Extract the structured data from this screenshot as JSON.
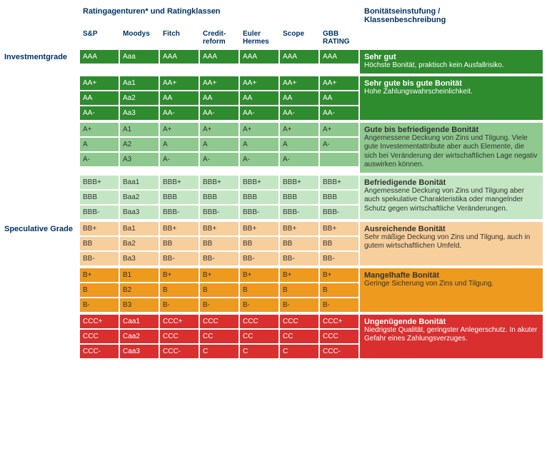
{
  "headers": {
    "agencies_title": "Ratingagenturen* und Ratingklassen",
    "desc_title": "Bonitätseinstufung / Klassenbeschreibung",
    "agency_cols": [
      "S&P",
      "Moodys",
      "Fitch",
      "Credit-reform",
      "Euler Hermes",
      "Scope",
      "GBB RATING"
    ]
  },
  "side_labels": {
    "investment": "Investmentgrade",
    "speculative": "Speculative Grade"
  },
  "colors": {
    "dark_green": "#2e8b2e",
    "mid_green": "#8fc98f",
    "light_green": "#c5e6c5",
    "peach": "#f7cf9c",
    "orange": "#ed9a1f",
    "red": "#d92f2f",
    "header_text": "#003366"
  },
  "groups": [
    {
      "side_label_key": "investment",
      "color_key": "dark_green",
      "text_dark": false,
      "rows": [
        [
          "AAA",
          "Aaa",
          "AAA",
          "AAA",
          "AAA",
          "AAA",
          "AAA"
        ]
      ],
      "desc_title": "Sehr gut",
      "desc_sub": "Höchste Bonität, praktisch kein Ausfallrisiko."
    },
    {
      "color_key": "dark_green",
      "text_dark": false,
      "rows": [
        [
          "AA+",
          "Aa1",
          "AA+",
          "AA+",
          "AA+",
          "AA+",
          "AA+"
        ],
        [
          "AA",
          "Aa2",
          "AA",
          "AA",
          "AA",
          "AA",
          "AA"
        ],
        [
          "AA-",
          "Aa3",
          "AA-",
          "AA-",
          "AA-",
          "AA-",
          "AA-"
        ]
      ],
      "desc_title": "Sehr gute bis gute Bonität",
      "desc_sub": "Hohe Zahlungswahrscheinlichkeit."
    },
    {
      "color_key": "mid_green",
      "text_dark": true,
      "rows": [
        [
          "A+",
          "A1",
          "A+",
          "A+",
          "A+",
          "A+",
          "A+"
        ],
        [
          "A",
          "A2",
          "A",
          "A",
          "A",
          "A",
          "A-"
        ],
        [
          "A-",
          "A3",
          "A-",
          "A-",
          "A-",
          "A-",
          ""
        ]
      ],
      "desc_title": "Gute bis befriedigende Bonität",
      "desc_sub": "Angemessene Deckung von Zins und Tilgung. Viele gute Investementattribute aber auch Elemente, die sich bei Veränderung der wirtschaftlichen Lage negativ auswirken können."
    },
    {
      "color_key": "light_green",
      "text_dark": true,
      "rows": [
        [
          "BBB+",
          "Baa1",
          "BBB+",
          "BBB+",
          "BBB+",
          "BBB+",
          "BBB+"
        ],
        [
          "BBB",
          "Baa2",
          "BBB",
          "BBB",
          "BBB",
          "BBB",
          "BBB"
        ],
        [
          "BBB-",
          "Baa3",
          "BBB-",
          "BBB-",
          "BBB-",
          "BBB-",
          "BBB-"
        ]
      ],
      "desc_title": "Befriedigende Bonität",
      "desc_sub": "Angemessene Deckung von Zins und Tilgung aber auch spekulative Charakteristika oder mangelnder Schutz gegen wirtschaftliche Veränderungen."
    },
    {
      "side_label_key": "speculative",
      "color_key": "peach",
      "text_dark": true,
      "rows": [
        [
          "BB+",
          "Ba1",
          "BB+",
          "BB+",
          "BB+",
          "BB+",
          "BB+"
        ],
        [
          "BB",
          "Ba2",
          "BB",
          "BB",
          "BB",
          "BB",
          "BB"
        ],
        [
          "BB-",
          "Ba3",
          "BB-",
          "BB-",
          "BB-",
          "BB-",
          "BB-"
        ]
      ],
      "desc_title": "Ausreichende Bonität",
      "desc_sub": "Sehr mäßige Deckung von Zins und Tilgung, auch in gutem wirtschaftlichen Umfeld."
    },
    {
      "color_key": "orange",
      "text_dark": true,
      "rows": [
        [
          "B+",
          "B1",
          "B+",
          "B+",
          "B+",
          "B+",
          "B+"
        ],
        [
          "B",
          "B2",
          "B",
          "B",
          "B",
          "B",
          "B"
        ],
        [
          "B-",
          "B3",
          "B-",
          "B-",
          "B-",
          "B-",
          "B-"
        ]
      ],
      "desc_title": "Mangelhafte Bonität",
      "desc_sub": "Geringe Sicherung von Zins und Tilgung."
    },
    {
      "color_key": "red",
      "text_dark": false,
      "rows": [
        [
          "CCC+",
          "Caa1",
          "CCC+",
          "CCC",
          "CCC",
          "CCC",
          "CCC+"
        ],
        [
          "CCC",
          "Caa2",
          "CCC",
          "CC",
          "CC",
          "CC",
          "CCC"
        ],
        [
          "CCC-",
          "Caa3",
          "CCC-",
          "C",
          "C",
          "C",
          "CCC-"
        ]
      ],
      "desc_title": "Ungenügende Bonität",
      "desc_sub": "Niedrigste Qualität, geringster Anlegerschutz. In akuter Gefahr eines Zahlungsverzuges."
    }
  ]
}
